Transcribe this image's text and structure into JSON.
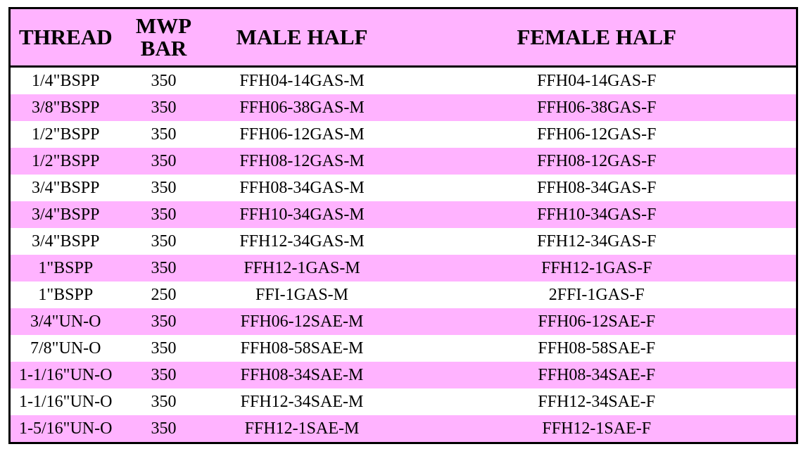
{
  "table": {
    "header": [
      "THREAD",
      "MWP BAR",
      "MALE HALF",
      "FEMALE HALF"
    ],
    "rows": [
      [
        "1/4\"BSPP",
        "350",
        "FFH04-14GAS-M",
        "FFH04-14GAS-F"
      ],
      [
        "3/8\"BSPP",
        "350",
        "FFH06-38GAS-M",
        "FFH06-38GAS-F"
      ],
      [
        "1/2\"BSPP",
        "350",
        "FFH06-12GAS-M",
        "FFH06-12GAS-F"
      ],
      [
        "1/2\"BSPP",
        "350",
        "FFH08-12GAS-M",
        "FFH08-12GAS-F"
      ],
      [
        "3/4\"BSPP",
        "350",
        "FFH08-34GAS-M",
        "FFH08-34GAS-F"
      ],
      [
        "3/4\"BSPP",
        "350",
        "FFH10-34GAS-M",
        "FFH10-34GAS-F"
      ],
      [
        "3/4\"BSPP",
        "350",
        "FFH12-34GAS-M",
        "FFH12-34GAS-F"
      ],
      [
        "1\"BSPP",
        "350",
        "FFH12-1GAS-M",
        "FFH12-1GAS-F"
      ],
      [
        "1\"BSPP",
        "250",
        "FFI-1GAS-M",
        "2FFI-1GAS-F"
      ],
      [
        "3/4\"UN-O",
        "350",
        "FFH06-12SAE-M",
        "FFH06-12SAE-F"
      ],
      [
        "7/8\"UN-O",
        "350",
        "FFH08-58SAE-M",
        "FFH08-58SAE-F"
      ],
      [
        "1-1/16\"UN-O",
        "350",
        "FFH08-34SAE-M",
        "FFH08-34SAE-F"
      ],
      [
        "1-1/16\"UN-O",
        "350",
        "FFH12-34SAE-M",
        "FFH12-34SAE-F"
      ],
      [
        "1-5/16\"UN-O",
        "350",
        "FFH12-1SAE-M",
        "FFH12-1SAE-F"
      ]
    ]
  }
}
